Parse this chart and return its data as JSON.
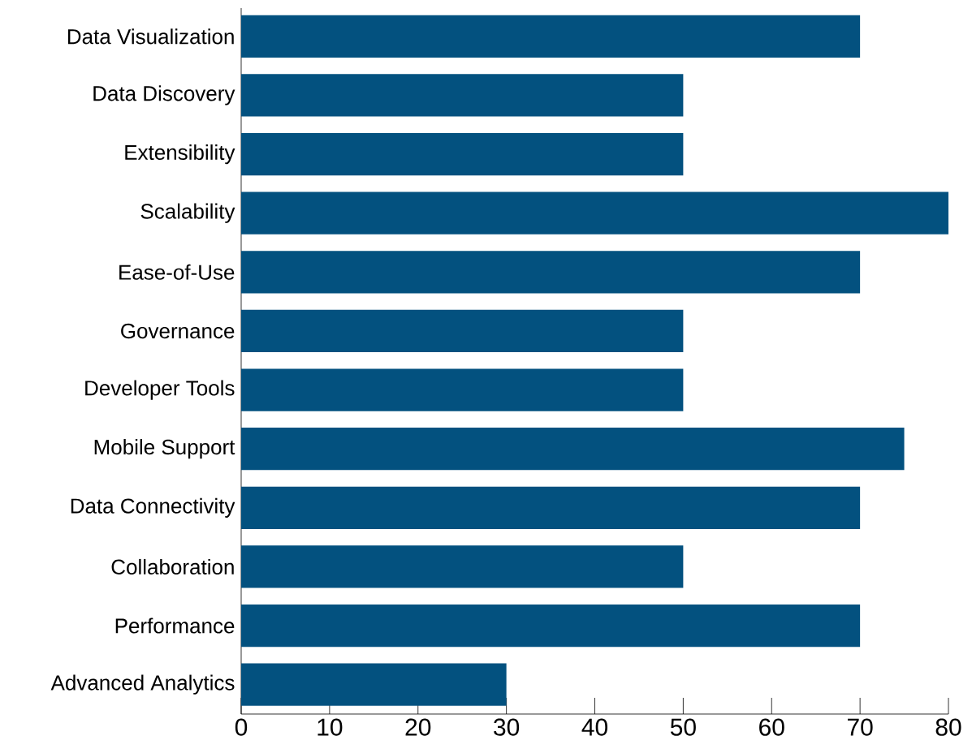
{
  "chart_data": {
    "type": "bar",
    "orientation": "horizontal",
    "categories": [
      "Data Visualization",
      "Data Discovery",
      "Extensibility",
      "Scalability",
      "Ease-of-Use",
      "Governance",
      "Developer Tools",
      "Mobile Support",
      "Data Connectivity",
      "Collaboration",
      "Performance",
      "Advanced Analytics"
    ],
    "values": [
      70,
      50,
      50,
      80,
      70,
      50,
      50,
      75,
      70,
      50,
      70,
      30
    ],
    "color": "#03517f",
    "xlim": [
      0,
      80
    ],
    "xticks": [
      0,
      10,
      20,
      30,
      40,
      50,
      60,
      70,
      80
    ]
  }
}
